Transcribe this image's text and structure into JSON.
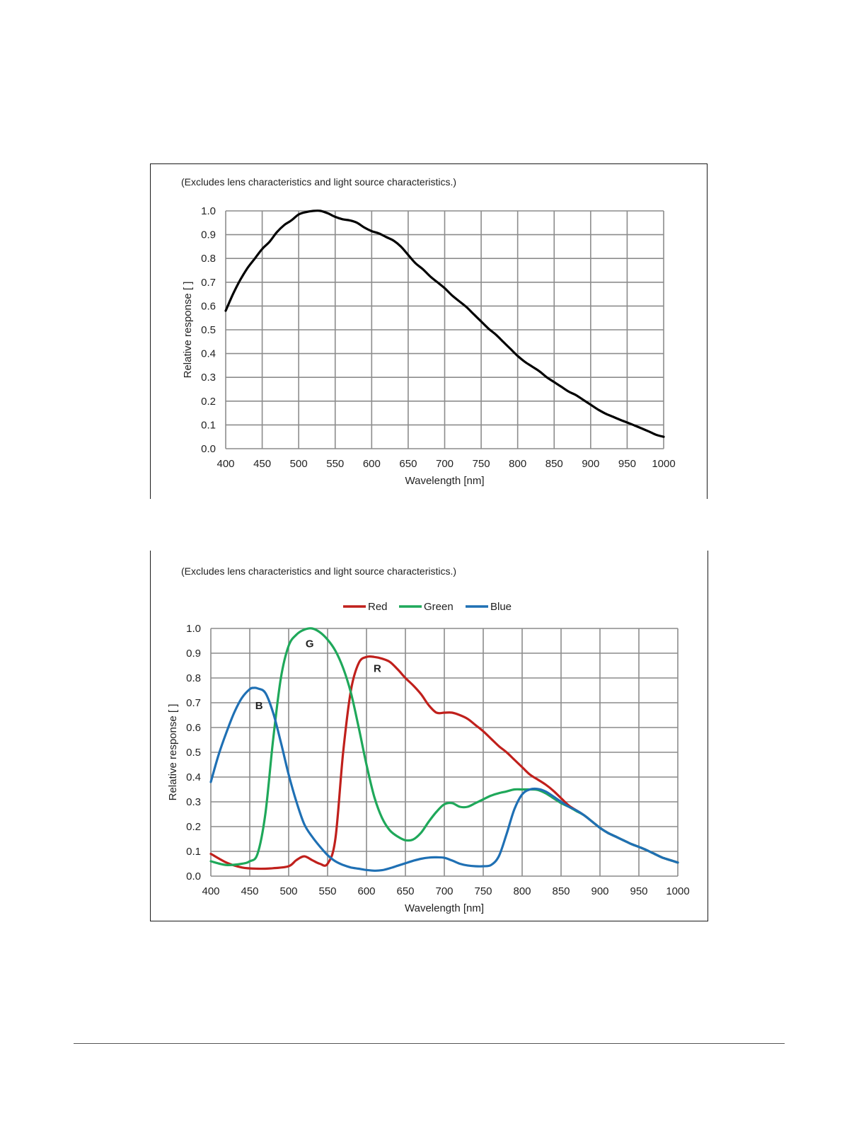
{
  "chart_data": [
    {
      "type": "line",
      "title": "(Excludes lens characteristics and light source characteristics.)",
      "xlabel": "Wavelength [nm]",
      "ylabel": "Relative response [ ]",
      "xlim": [
        400,
        1000
      ],
      "ylim": [
        0,
        1.0
      ],
      "x_ticks": [
        "400",
        "450",
        "500",
        "550",
        "600",
        "650",
        "700",
        "750",
        "800",
        "850",
        "900",
        "950",
        "1000"
      ],
      "y_ticks": [
        "0.0",
        "0.1",
        "0.2",
        "0.3",
        "0.4",
        "0.5",
        "0.6",
        "0.7",
        "0.8",
        "0.9",
        "1.0"
      ],
      "grid": true,
      "legend": "none",
      "series": [
        {
          "color": "#000000",
          "x": [
            400,
            410,
            420,
            430,
            440,
            450,
            460,
            470,
            480,
            490,
            500,
            510,
            520,
            530,
            540,
            550,
            560,
            570,
            580,
            590,
            600,
            610,
            620,
            630,
            640,
            650,
            660,
            670,
            680,
            690,
            700,
            710,
            720,
            730,
            740,
            750,
            760,
            770,
            780,
            790,
            800,
            810,
            820,
            830,
            840,
            850,
            860,
            870,
            880,
            890,
            900,
            910,
            920,
            930,
            940,
            950,
            960,
            970,
            980,
            990,
            1000
          ],
          "values": [
            0.58,
            0.65,
            0.71,
            0.76,
            0.8,
            0.84,
            0.87,
            0.91,
            0.94,
            0.96,
            0.985,
            0.995,
            1.0,
            1.0,
            0.99,
            0.975,
            0.965,
            0.96,
            0.95,
            0.93,
            0.915,
            0.905,
            0.89,
            0.875,
            0.85,
            0.815,
            0.78,
            0.755,
            0.725,
            0.7,
            0.675,
            0.645,
            0.62,
            0.595,
            0.565,
            0.535,
            0.505,
            0.48,
            0.45,
            0.42,
            0.39,
            0.365,
            0.345,
            0.325,
            0.3,
            0.28,
            0.26,
            0.24,
            0.225,
            0.205,
            0.185,
            0.165,
            0.148,
            0.135,
            0.122,
            0.11,
            0.098,
            0.085,
            0.072,
            0.058,
            0.05
          ]
        }
      ]
    },
    {
      "type": "line",
      "title": "(Excludes lens characteristics and light source characteristics.)",
      "xlabel": "Wavelength [nm]",
      "ylabel": "Relative response [ ]",
      "xlim": [
        400,
        1000
      ],
      "ylim": [
        0,
        1.0
      ],
      "x_ticks": [
        "400",
        "450",
        "500",
        "550",
        "600",
        "650",
        "700",
        "750",
        "800",
        "850",
        "900",
        "950",
        "1000"
      ],
      "y_ticks": [
        "0.0",
        "0.1",
        "0.2",
        "0.3",
        "0.4",
        "0.5",
        "0.6",
        "0.7",
        "0.8",
        "0.9",
        "1.0"
      ],
      "grid": true,
      "legend": "top-center",
      "series": [
        {
          "name": "Red",
          "color": "#c0201c",
          "x": [
            400,
            420,
            440,
            460,
            480,
            500,
            510,
            520,
            530,
            540,
            550,
            560,
            570,
            580,
            590,
            600,
            610,
            620,
            630,
            640,
            650,
            660,
            670,
            680,
            690,
            700,
            710,
            720,
            730,
            740,
            750,
            760,
            770,
            780,
            790,
            800,
            810,
            820,
            830,
            840,
            850,
            860,
            870,
            880,
            890,
            900,
            910,
            920,
            930,
            940,
            950,
            960,
            970,
            980,
            990,
            1000
          ],
          "values": [
            0.09,
            0.055,
            0.035,
            0.03,
            0.032,
            0.04,
            0.065,
            0.08,
            0.065,
            0.05,
            0.05,
            0.15,
            0.5,
            0.75,
            0.86,
            0.885,
            0.885,
            0.878,
            0.865,
            0.835,
            0.8,
            0.77,
            0.735,
            0.69,
            0.66,
            0.66,
            0.66,
            0.65,
            0.635,
            0.61,
            0.585,
            0.555,
            0.525,
            0.5,
            0.47,
            0.44,
            0.41,
            0.39,
            0.37,
            0.345,
            0.315,
            0.285,
            0.265,
            0.245,
            0.22,
            0.195,
            0.175,
            0.16,
            0.145,
            0.13,
            0.118,
            0.105,
            0.09,
            0.075,
            0.065,
            0.055
          ]
        },
        {
          "name": "Green",
          "color": "#1fa85a",
          "x": [
            400,
            420,
            440,
            450,
            460,
            470,
            480,
            490,
            500,
            510,
            520,
            530,
            540,
            550,
            560,
            570,
            580,
            590,
            600,
            610,
            620,
            630,
            640,
            650,
            660,
            670,
            680,
            690,
            700,
            710,
            720,
            730,
            740,
            750,
            760,
            770,
            780,
            790,
            800,
            810,
            820,
            830,
            840,
            850,
            860,
            870,
            880,
            890,
            900,
            910,
            920,
            930,
            940,
            950,
            960,
            970,
            980,
            990,
            1000
          ],
          "values": [
            0.06,
            0.045,
            0.05,
            0.06,
            0.09,
            0.25,
            0.55,
            0.8,
            0.93,
            0.975,
            0.995,
            1.0,
            0.985,
            0.955,
            0.91,
            0.84,
            0.74,
            0.6,
            0.45,
            0.32,
            0.235,
            0.185,
            0.16,
            0.145,
            0.148,
            0.175,
            0.22,
            0.26,
            0.29,
            0.295,
            0.28,
            0.28,
            0.295,
            0.31,
            0.325,
            0.335,
            0.342,
            0.35,
            0.35,
            0.35,
            0.348,
            0.335,
            0.315,
            0.295,
            0.28,
            0.262,
            0.245,
            0.22,
            0.195,
            0.175,
            0.16,
            0.145,
            0.13,
            0.118,
            0.105,
            0.09,
            0.075,
            0.065,
            0.055
          ]
        },
        {
          "name": "Blue",
          "color": "#1f70b4",
          "x": [
            400,
            410,
            420,
            430,
            440,
            450,
            455,
            460,
            470,
            480,
            490,
            500,
            510,
            520,
            530,
            540,
            550,
            560,
            570,
            580,
            590,
            600,
            610,
            620,
            630,
            640,
            650,
            660,
            670,
            680,
            690,
            700,
            710,
            720,
            730,
            740,
            750,
            760,
            770,
            780,
            790,
            800,
            810,
            820,
            830,
            840,
            850,
            860,
            870,
            880,
            890,
            900,
            910,
            920,
            930,
            940,
            950,
            960,
            970,
            980,
            990,
            1000
          ],
          "values": [
            0.38,
            0.49,
            0.58,
            0.66,
            0.72,
            0.755,
            0.76,
            0.758,
            0.74,
            0.66,
            0.54,
            0.41,
            0.3,
            0.21,
            0.16,
            0.12,
            0.085,
            0.06,
            0.045,
            0.035,
            0.03,
            0.025,
            0.022,
            0.024,
            0.032,
            0.042,
            0.052,
            0.062,
            0.07,
            0.075,
            0.076,
            0.074,
            0.063,
            0.05,
            0.043,
            0.04,
            0.04,
            0.045,
            0.08,
            0.17,
            0.27,
            0.33,
            0.35,
            0.352,
            0.342,
            0.322,
            0.3,
            0.28,
            0.265,
            0.245,
            0.22,
            0.195,
            0.175,
            0.16,
            0.145,
            0.13,
            0.118,
            0.105,
            0.09,
            0.075,
            0.065,
            0.055
          ]
        }
      ],
      "annotations": [
        {
          "text": "G",
          "x": 527,
          "y": 0.925
        },
        {
          "text": "R",
          "x": 614,
          "y": 0.825
        },
        {
          "text": "B",
          "x": 462,
          "y": 0.675
        }
      ]
    }
  ]
}
